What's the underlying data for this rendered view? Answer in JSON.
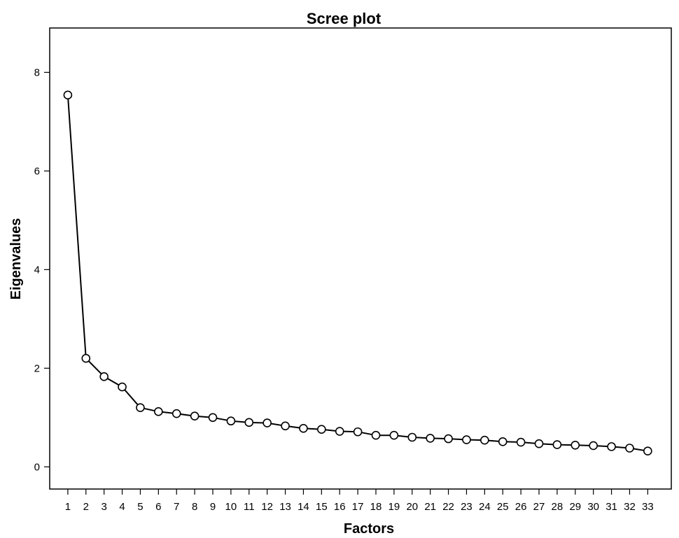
{
  "chart_data": {
    "type": "line",
    "title": "Scree plot",
    "xlabel": "Factors",
    "ylabel": "Eigenvalues",
    "x": [
      1,
      2,
      3,
      4,
      5,
      6,
      7,
      8,
      9,
      10,
      11,
      12,
      13,
      14,
      15,
      16,
      17,
      18,
      19,
      20,
      21,
      22,
      23,
      24,
      25,
      26,
      27,
      28,
      29,
      30,
      31,
      32,
      33
    ],
    "x_tick_labels": [
      "1",
      "2",
      "3",
      "4",
      "5",
      "6",
      "7",
      "8",
      "9",
      "10",
      "11",
      "12",
      "13",
      "14",
      "15",
      "16",
      "17",
      "18",
      "19",
      "20",
      "21",
      "22",
      "23",
      "24",
      "25",
      "26",
      "27",
      "28",
      "29",
      "30",
      "31",
      "32",
      "33"
    ],
    "series": [
      {
        "values": [
          7.54,
          2.2,
          1.83,
          1.62,
          1.2,
          1.12,
          1.08,
          1.03,
          1.0,
          0.93,
          0.9,
          0.89,
          0.83,
          0.78,
          0.76,
          0.72,
          0.71,
          0.64,
          0.64,
          0.6,
          0.58,
          0.57,
          0.55,
          0.54,
          0.51,
          0.5,
          0.47,
          0.45,
          0.44,
          0.43,
          0.41,
          0.38,
          0.32
        ],
        "marker": "open-circle",
        "color": "#000000"
      }
    ],
    "y_ticks": [
      0,
      2,
      4,
      6,
      8
    ],
    "y_tick_labels": [
      "0",
      "2",
      "4",
      "6",
      "8"
    ],
    "xlim": [
      0,
      34.3
    ],
    "ylim": [
      -0.45,
      8.9
    ],
    "grid": false,
    "legend": false
  }
}
